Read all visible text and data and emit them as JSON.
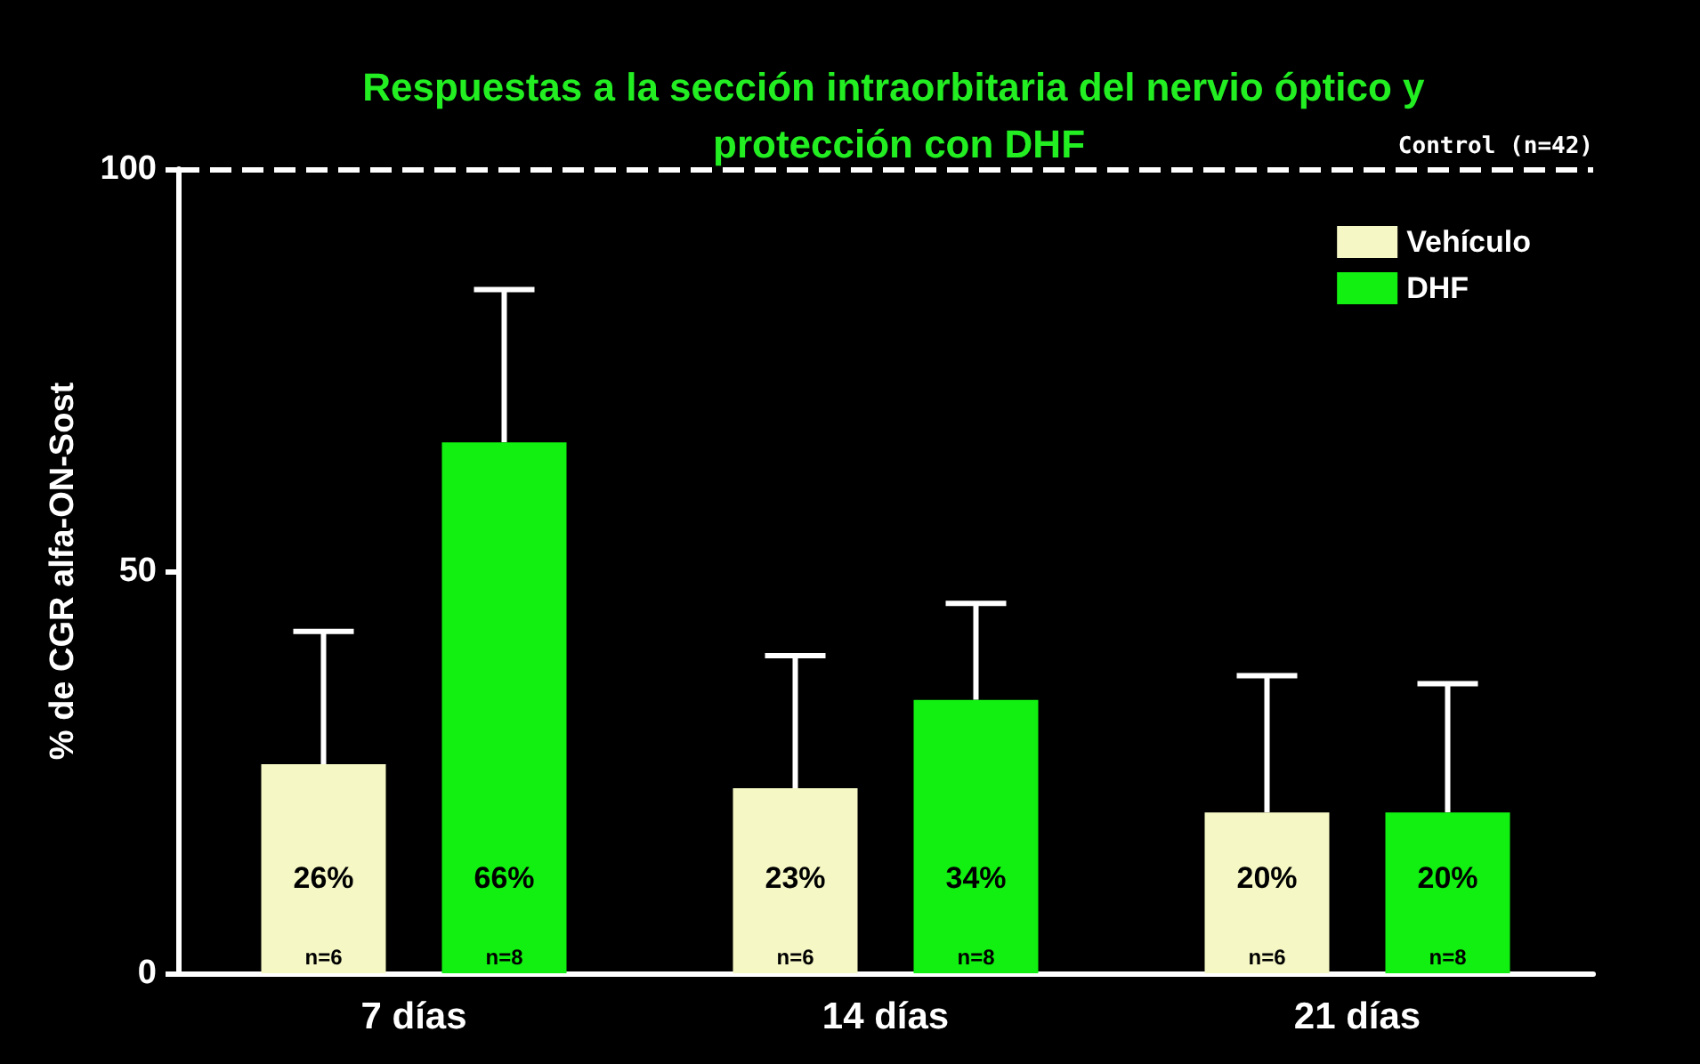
{
  "chart_data": {
    "type": "bar",
    "title": "Respuestas a la sección intraorbitaria del nervio óptico y protección con DHF",
    "ylabel": "% de CGR alfa-ON-Sost",
    "categories": [
      "7 días",
      "14 días",
      "21 días"
    ],
    "series": [
      {
        "name": "Vehículo",
        "color": "#f5f7c4",
        "values": [
          26,
          23,
          20
        ],
        "value_labels": [
          "26%",
          "23%",
          "20%"
        ],
        "errors": [
          [
            26,
            42.5
          ],
          [
            23,
            39.5
          ],
          [
            20,
            37
          ]
        ]
      },
      {
        "name": "DHF",
        "color": "#11f011",
        "values": [
          66,
          34,
          20
        ],
        "value_labels": [
          "66%",
          "34%",
          "20%"
        ],
        "errors": [
          [
            66,
            85
          ],
          [
            34,
            46
          ],
          [
            20,
            36
          ]
        ]
      }
    ],
    "ylim": [
      0,
      100
    ],
    "yticks": [
      0,
      50,
      100
    ],
    "ref_lines": [
      {
        "axis": "y",
        "value": 100,
        "color": "#ffffff",
        "line_style": "dashed"
      }
    ],
    "annotations": [
      "n=6",
      "n=8",
      "n=6",
      "n=8",
      "n=6",
      "n=8",
      {
        "text": "Control (n=42)",
        "y": 100
      }
    ],
    "legend": "top right",
    "grid": false
  }
}
